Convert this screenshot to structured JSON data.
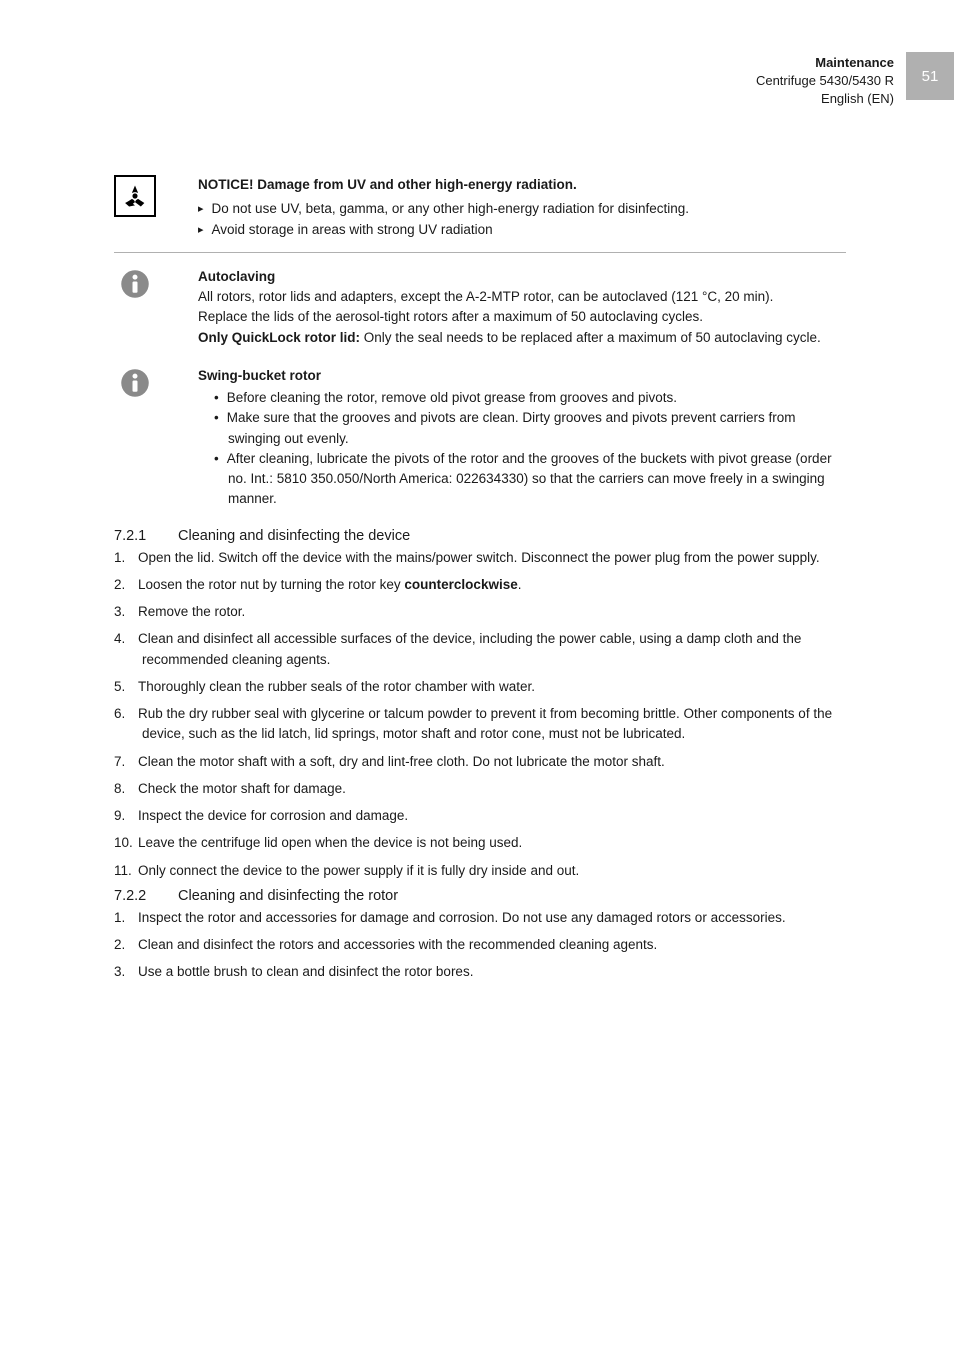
{
  "header": {
    "section": "Maintenance",
    "model": "Centrifuge 5430/5430 R",
    "lang": "English (EN)",
    "page_number": "51"
  },
  "notice": {
    "heading": "NOTICE! Damage from UV and other high-energy radiation.",
    "items": [
      "Do not use UV, beta, gamma, or any other high-energy radiation for disinfecting.",
      "Avoid storage in areas with strong UV radiation"
    ]
  },
  "info1": {
    "heading": "Autoclaving",
    "p1": "All rotors, rotor lids and adapters, except the A-2-MTP rotor, can be autoclaved (121 °C, 20 min).",
    "p2": "Replace the lids of the aerosol-tight rotors after a maximum of 50 autoclaving cycles.",
    "strong": "Only QuickLock rotor lid:",
    "p3": " Only the seal needs to be replaced after a maximum of 50 autoclaving cycle."
  },
  "info2": {
    "heading": "Swing-bucket rotor",
    "bullets": [
      "Before cleaning the rotor, remove old pivot grease from grooves and pivots.",
      "Make sure that the grooves and pivots are clean. Dirty grooves and pivots prevent carriers from swinging out evenly.",
      "After cleaning, lubricate the pivots of the rotor and the grooves of the buckets with pivot grease (order no. Int.: 5810 350.050/North America: 022634330) so that the carriers can move freely in a swinging manner."
    ]
  },
  "sec721": {
    "num": "7.2.1",
    "title": "Cleaning and disinfecting the device",
    "steps": [
      {
        "pre": "Open the lid. Switch off the device with the mains/power switch. Disconnect the power plug from the power supply."
      },
      {
        "pre": "Loosen the rotor nut by turning the rotor key ",
        "bold": "counterclockwise",
        "post": "."
      },
      {
        "pre": "Remove the rotor."
      },
      {
        "pre": "Clean and disinfect all accessible surfaces of the device, including the power cable, using a damp cloth and the recommended cleaning agents."
      },
      {
        "pre": "Thoroughly clean the rubber seals of the rotor chamber with water."
      },
      {
        "pre": "Rub the dry rubber seal with glycerine or talcum powder to prevent it from becoming brittle. Other components of the device, such as the lid latch, lid springs, motor shaft and rotor cone, must not be lubricated."
      },
      {
        "pre": "Clean the motor shaft with a soft, dry and lint-free cloth. Do not lubricate the motor shaft."
      },
      {
        "pre": "Check the motor shaft for damage."
      },
      {
        "pre": "Inspect the device for corrosion and damage."
      },
      {
        "pre": "Leave the centrifuge lid open when the device is not being used."
      },
      {
        "pre": "Only connect the device to the power supply if it is fully dry inside and out."
      }
    ]
  },
  "sec722": {
    "num": "7.2.2",
    "title": "Cleaning and disinfecting the rotor",
    "steps": [
      {
        "pre": "Inspect the rotor and accessories for damage and corrosion. Do not use any damaged rotors or accessories."
      },
      {
        "pre": "Clean and disinfect the rotors and accessories with the recommended cleaning agents."
      },
      {
        "pre": "Use a bottle brush to clean and disinfect the rotor bores."
      }
    ]
  },
  "colors": {
    "text": "#1a1a1a",
    "grey": "#b0b0b0",
    "white": "#ffffff",
    "icon_grey": "#888888"
  }
}
